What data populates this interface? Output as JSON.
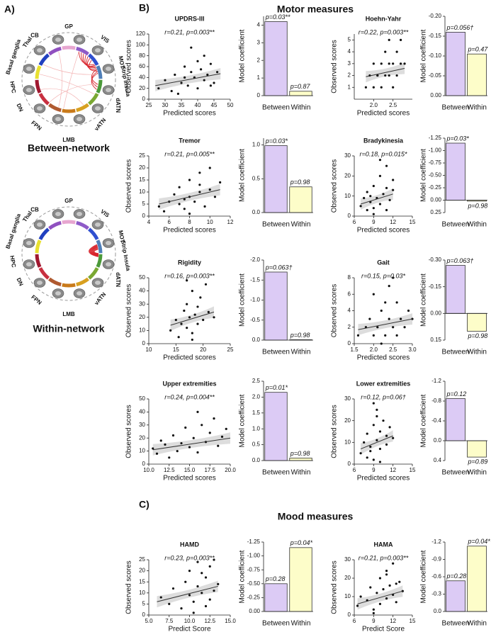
{
  "panel_labels": [
    "A)",
    "B)",
    "C)"
  ],
  "section_titles": [
    "Motor measures",
    "Mood measures"
  ],
  "network_diagrams": [
    {
      "title": "Between-network"
    },
    {
      "title": "Within-network"
    }
  ],
  "network_labels": [
    "CB",
    "GP",
    "VIS",
    "MOT",
    "Strip Insula",
    "dATN",
    "vATN",
    "LMB",
    "FPN",
    "DN",
    "HPC",
    "Basal ganglia",
    "Thal"
  ],
  "chart_data": [
    {
      "type": "scatter",
      "title": "UPDRS-III",
      "annotation": "r=0.21,  p=0.003**",
      "xlabel": "Predicted scores",
      "ylabel": "Observed scores",
      "color": "#111111",
      "xlim": [
        25,
        50
      ],
      "xticks": [
        25,
        30,
        35,
        40,
        45,
        50
      ],
      "ylim": [
        0,
        120
      ],
      "yticks": [
        0,
        20,
        40,
        60,
        80,
        100,
        120
      ],
      "x": [
        28,
        30,
        32,
        33,
        35,
        36,
        37,
        38,
        39,
        40,
        40,
        41,
        42,
        43,
        44,
        45,
        46,
        34,
        38,
        42,
        36,
        44
      ],
      "y": [
        20,
        35,
        15,
        45,
        30,
        60,
        25,
        50,
        40,
        70,
        20,
        55,
        35,
        45,
        65,
        30,
        50,
        10,
        95,
        80,
        40,
        25
      ],
      "fit": {
        "x": [
          27,
          47
        ],
        "y": [
          25,
          47
        ]
      }
    },
    {
      "type": "bar",
      "ylabel": "Model coefficient",
      "categories": [
        "Between",
        "Within"
      ],
      "values": [
        4.2,
        0.25
      ],
      "colors": [
        "#dccbf5",
        "#fdfdc9"
      ],
      "annotations": [
        "p=0.03**",
        "p=0.87"
      ],
      "ylim": [
        0,
        4.5
      ],
      "yticks": [
        0,
        1,
        2,
        3,
        4
      ]
    },
    {
      "type": "scatter",
      "title": "Hoehn-Yahr",
      "annotation": "r=0.22,  p=0.003**",
      "xlabel": "Predicted scores",
      "ylabel": "Observed scores",
      "color": "#111111",
      "xlim": [
        1.5,
        3.0
      ],
      "xticks": [
        {
          "value": 2,
          "label": "2.0"
        },
        2.5
      ],
      "ylim": [
        0,
        5.5
      ],
      "yticks": [
        1,
        2,
        3,
        4,
        5
      ],
      "x": [
        1.8,
        1.9,
        2.0,
        2.0,
        2.1,
        2.2,
        2.2,
        2.3,
        2.3,
        2.4,
        2.4,
        2.5,
        2.5,
        2.6,
        2.6,
        2.7,
        2.7,
        2.8,
        2.1,
        2.4
      ],
      "y": [
        1,
        2,
        1,
        3,
        2,
        1,
        3,
        2,
        4,
        2,
        3,
        1,
        3,
        2,
        4,
        3,
        5,
        3,
        2,
        5
      ],
      "fit": {
        "x": [
          1.8,
          2.8
        ],
        "y": [
          1.9,
          2.6
        ]
      }
    },
    {
      "type": "bar",
      "ylabel": "Model coefficient",
      "categories": [
        "Between",
        "Within"
      ],
      "values": [
        -0.16,
        -0.105
      ],
      "colors": [
        "#dccbf5",
        "#fdfdc9"
      ],
      "annotations": [
        "p=0.056†",
        "p=0.47"
      ],
      "ylim": [
        0,
        -0.2
      ],
      "yticks": [
        {
          "value": -0.2,
          "label": "-0.20"
        },
        -0.15,
        {
          "value": -0.1,
          "label": "-0.10"
        },
        -0.05,
        {
          "value": 0,
          "label": "0.00"
        }
      ]
    },
    {
      "type": "scatter",
      "title": "Tremor",
      "annotation": "r=0.21,  p=0.005**",
      "xlabel": "Predicted scores",
      "ylabel": "Observed scores",
      "color": "#111111",
      "xlim": [
        4,
        12
      ],
      "xticks": [
        4,
        6,
        8,
        10,
        12
      ],
      "ylim": [
        0,
        25
      ],
      "yticks": [
        0,
        5,
        10,
        15,
        20,
        25
      ],
      "x": [
        5,
        5.5,
        6,
        6.5,
        7,
        7,
        7.5,
        8,
        8,
        8.5,
        9,
        9,
        9.5,
        10,
        10,
        10.5,
        11,
        8,
        9,
        7.5
      ],
      "y": [
        4,
        2,
        6,
        9,
        5,
        12,
        3,
        8,
        15,
        6,
        10,
        18,
        4,
        11,
        20,
        8,
        14,
        1,
        13,
        7
      ],
      "fit": {
        "x": [
          5,
          11
        ],
        "y": [
          5,
          11
        ]
      }
    },
    {
      "type": "bar",
      "ylabel": "Model coefficient",
      "categories": [
        "Between",
        "Within"
      ],
      "values": [
        0.99,
        0.38
      ],
      "colors": [
        "#dccbf5",
        "#fdfdc9"
      ],
      "annotations": [
        "p=0.03*",
        "p=0.98"
      ],
      "ylim": [
        0,
        1.1
      ],
      "yticks": [
        {
          "value": 0,
          "label": "0.0"
        },
        0.5,
        {
          "value": 1,
          "label": "1.0"
        }
      ]
    },
    {
      "type": "scatter",
      "title": "Bradykinesia",
      "annotation": "r=0.18,  p=0.015*",
      "xlabel": "Predicted scores",
      "ylabel": "Observed scores",
      "color": "#111111",
      "xlim": [
        6,
        15
      ],
      "xticks": [
        6,
        9,
        12,
        15
      ],
      "ylim": [
        0,
        30
      ],
      "yticks": [
        0,
        10,
        20,
        30
      ],
      "x": [
        7,
        7.5,
        8,
        8,
        8.5,
        9,
        9,
        9.5,
        10,
        10,
        10.5,
        11,
        11,
        11.5,
        12,
        12,
        9,
        10,
        8.5,
        11
      ],
      "y": [
        5,
        9,
        3,
        12,
        7,
        15,
        4,
        9,
        20,
        6,
        11,
        14,
        25,
        8,
        13,
        18,
        1,
        28,
        10,
        3
      ],
      "fit": {
        "x": [
          7,
          12
        ],
        "y": [
          6,
          11
        ]
      }
    },
    {
      "type": "bar",
      "ylabel": "Model coefficient",
      "categories": [
        "Between",
        "Within"
      ],
      "values": [
        -1.15,
        0.02
      ],
      "colors": [
        "#dccbf5",
        "#fdfdc9"
      ],
      "annotations": [
        "p=0.03*",
        "p=0.98"
      ],
      "ylim": [
        0.25,
        -1.25
      ],
      "yticks": [
        -1.25,
        {
          "value": -1,
          "label": "-1.00"
        },
        -0.75,
        {
          "value": -0.5,
          "label": "-0.50"
        },
        -0.25,
        {
          "value": 0,
          "label": "0.00"
        },
        0.25
      ]
    },
    {
      "type": "scatter",
      "title": "Rigidity",
      "annotation": "r=0.16,  p=0.003**",
      "xlabel": "Predicted scores",
      "ylabel": "Observed scores",
      "color": "#111111",
      "xlim": [
        10,
        25
      ],
      "xticks": [
        10,
        15,
        20,
        25
      ],
      "ylim": [
        0,
        50
      ],
      "yticks": [
        0,
        10,
        20,
        30,
        40,
        50
      ],
      "x": [
        14,
        15,
        15.5,
        16,
        16.5,
        17,
        17,
        17.5,
        18,
        18,
        18.5,
        19,
        19,
        19.5,
        20,
        20.5,
        21,
        22,
        18,
        17
      ],
      "y": [
        10,
        18,
        5,
        15,
        25,
        12,
        30,
        20,
        8,
        40,
        22,
        15,
        28,
        35,
        18,
        45,
        24,
        20,
        3,
        48
      ],
      "fit": {
        "x": [
          14,
          22
        ],
        "y": [
          14,
          24
        ]
      }
    },
    {
      "type": "bar",
      "ylabel": "Model coefficient",
      "categories": [
        "Between",
        "Within"
      ],
      "values": [
        -1.7,
        -0.01
      ],
      "colors": [
        "#dccbf5",
        "#fdfdc9"
      ],
      "annotations": [
        "p=0.063†",
        "p=0.98"
      ],
      "ylim": [
        0,
        -2
      ],
      "yticks": [
        {
          "value": -2,
          "label": "-2.0"
        },
        -1.5,
        {
          "value": -1,
          "label": "-1.0"
        },
        -0.5,
        {
          "value": 0,
          "label": "0.0"
        }
      ]
    },
    {
      "type": "scatter",
      "title": "Gait",
      "annotation": "r=0.15,  p=0.03*",
      "xlabel": "Predicted scores",
      "ylabel": "Observed scores",
      "color": "#111111",
      "xlim": [
        1.5,
        3.0
      ],
      "xticks": [
        1.5,
        {
          "value": 2,
          "label": "2.0"
        },
        2.5,
        {
          "value": 3,
          "label": "3.0"
        }
      ],
      "ylim": [
        0,
        8
      ],
      "yticks": [
        0,
        2,
        4,
        6,
        8
      ],
      "x": [
        1.6,
        1.8,
        1.9,
        2.0,
        2.1,
        2.2,
        2.3,
        2.4,
        2.5,
        2.6,
        2.7,
        2.8,
        2.9,
        3.0,
        2.0,
        2.2,
        2.4,
        2.6,
        2.3,
        2.5
      ],
      "y": [
        1,
        2,
        3,
        1,
        2,
        4,
        1,
        3,
        2,
        5,
        3,
        2,
        4,
        3,
        6,
        0,
        7,
        1,
        5,
        8
      ],
      "fit": {
        "x": [
          1.6,
          3.0
        ],
        "y": [
          1.7,
          3.0
        ]
      }
    },
    {
      "type": "bar",
      "ylabel": "Model coefficient",
      "categories": [
        "Between",
        "Within"
      ],
      "values": [
        -0.27,
        0.1
      ],
      "colors": [
        "#dccbf5",
        "#fdfdc9"
      ],
      "annotations": [
        "p=0.063†",
        "p=0.98"
      ],
      "ylim": [
        0.15,
        -0.3
      ],
      "yticks": [
        {
          "value": -0.3,
          "label": "-0.30"
        },
        -0.15,
        {
          "value": 0,
          "label": "0.00"
        },
        0.15
      ]
    },
    {
      "type": "scatter",
      "title": "Upper extremities",
      "annotation": "r=0.24,  p=0.004**",
      "xlabel": "Predicted scores",
      "ylabel": "Observed scores",
      "color": "#111111",
      "xlim": [
        10,
        20
      ],
      "xticks": [
        {
          "value": 10,
          "label": "10.0"
        },
        12.5,
        {
          "value": 15,
          "label": "15.0"
        },
        17.5,
        {
          "value": 20,
          "label": "20.0"
        }
      ],
      "ylim": [
        0,
        50
      ],
      "yticks": [
        0,
        10,
        20,
        30,
        40,
        50
      ],
      "x": [
        10.5,
        11,
        11.5,
        12,
        12.5,
        13,
        13.5,
        14,
        14.5,
        15,
        15.5,
        16,
        16.5,
        17,
        17.5,
        18,
        18.5,
        19,
        19.5,
        16
      ],
      "y": [
        12,
        8,
        18,
        15,
        5,
        22,
        10,
        16,
        28,
        13,
        20,
        9,
        30,
        17,
        24,
        35,
        14,
        21,
        27,
        40
      ],
      "fit": {
        "x": [
          10.5,
          20
        ],
        "y": [
          11,
          20
        ]
      }
    },
    {
      "type": "bar",
      "ylabel": "Model coefficient",
      "categories": [
        "Between",
        "Within"
      ],
      "values": [
        2.15,
        0.08
      ],
      "colors": [
        "#dccbf5",
        "#fdfdc9"
      ],
      "annotations": [
        "p=0.01*",
        "p=0.98"
      ],
      "ylim": [
        0,
        2.5
      ],
      "yticks": [
        {
          "value": 0,
          "label": "0.0"
        },
        0.5,
        {
          "value": 1,
          "label": "1.0"
        },
        1.5,
        {
          "value": 2,
          "label": "2.0"
        },
        2.5
      ]
    },
    {
      "type": "scatter",
      "title": "Lower extremities",
      "annotation": "r=0.12,  p=0.06†",
      "xlabel": "Predicted scores",
      "ylabel": "Observed scores",
      "color": "#111111",
      "xlim": [
        6,
        15
      ],
      "xticks": [
        6,
        9,
        12,
        15
      ],
      "ylim": [
        0,
        30
      ],
      "yticks": [
        0,
        10,
        20,
        30
      ],
      "x": [
        7,
        7.5,
        8,
        8,
        8.5,
        9,
        9,
        9.5,
        9.5,
        10,
        10,
        10.5,
        11,
        11,
        11.5,
        12,
        9,
        10,
        8.5,
        9.5
      ],
      "y": [
        5,
        10,
        3,
        14,
        8,
        18,
        2,
        11,
        25,
        7,
        15,
        20,
        9,
        13,
        17,
        12,
        28,
        1,
        6,
        22
      ],
      "fit": {
        "x": [
          7,
          12
        ],
        "y": [
          7,
          13
        ]
      }
    },
    {
      "type": "bar",
      "ylabel": "Model coefficient",
      "categories": [
        "Between",
        "Within"
      ],
      "values": [
        -0.85,
        0.33
      ],
      "colors": [
        "#dccbf5",
        "#fdfdc9"
      ],
      "annotations": [
        "p=0.12",
        "p=0.89"
      ],
      "ylim": [
        0.4,
        -1.2
      ],
      "yticks": [
        -1.2,
        -0.8,
        -0.4,
        {
          "value": 0,
          "label": "0.0"
        },
        0.4
      ]
    },
    {
      "type": "scatter",
      "title": "HAMD",
      "annotation": "r=0.23,  p=0.003**",
      "xlabel": "Predict Score",
      "ylabel": "Observed scores",
      "color": "#111111",
      "xlim": [
        5,
        15
      ],
      "xticks": [
        {
          "value": 5,
          "label": "5.0"
        },
        7.5,
        {
          "value": 10,
          "label": "10.0"
        },
        12.5,
        {
          "value": 15,
          "label": "15.0"
        }
      ],
      "ylim": [
        0,
        25
      ],
      "yticks": [
        0,
        5,
        10,
        15,
        20,
        25
      ],
      "x": [
        6.5,
        7.5,
        8,
        9,
        9.5,
        10,
        10,
        10.5,
        11,
        11,
        11.5,
        12,
        12,
        12.5,
        13,
        13,
        13.5,
        10.5,
        11.5,
        12.5
      ],
      "y": [
        8,
        5,
        12,
        3,
        15,
        9,
        20,
        6,
        13,
        24,
        10,
        17,
        4,
        22,
        11,
        25,
        14,
        1,
        19,
        7
      ],
      "fit": {
        "x": [
          6,
          13.5
        ],
        "y": [
          6,
          13
        ]
      }
    },
    {
      "type": "bar",
      "ylabel": "Model coefficient",
      "categories": [
        "Between",
        "Within"
      ],
      "values": [
        -0.5,
        -1.15
      ],
      "colors": [
        "#dccbf5",
        "#fdfdc9"
      ],
      "annotations": [
        "p=0.28",
        "p=0.04*"
      ],
      "ylim": [
        0,
        -1.25
      ],
      "yticks": [
        -1.25,
        {
          "value": -1,
          "label": "-1.00"
        },
        -0.75,
        {
          "value": -0.5,
          "label": "-0.50"
        },
        -0.25,
        {
          "value": 0,
          "label": "0.00"
        }
      ]
    },
    {
      "type": "scatter",
      "title": "HAMA",
      "annotation": "r=0.21,  p=0.003**",
      "xlabel": "Predict Score",
      "ylabel": "Observed scores",
      "color": "#111111",
      "xlim": [
        6,
        15
      ],
      "xticks": [
        6,
        9,
        12,
        15
      ],
      "ylim": [
        0,
        30
      ],
      "yticks": [
        0,
        10,
        20,
        30
      ],
      "x": [
        6.5,
        7,
        8,
        8.5,
        9,
        9.5,
        10,
        10,
        10.5,
        11,
        11,
        11.5,
        12,
        12,
        12.5,
        13,
        13.5,
        9,
        11,
        12.5
      ],
      "y": [
        5,
        10,
        8,
        15,
        3,
        12,
        20,
        6,
        14,
        9,
        24,
        16,
        11,
        28,
        7,
        18,
        13,
        1,
        22,
        17
      ],
      "fit": {
        "x": [
          6.5,
          13.5
        ],
        "y": [
          6,
          13
        ]
      }
    },
    {
      "type": "bar",
      "ylabel": "Model coefficient",
      "categories": [
        "Between",
        "Within"
      ],
      "values": [
        -0.53,
        -1.13
      ],
      "colors": [
        "#dccbf5",
        "#fdfdc9"
      ],
      "annotations": [
        "p=0.28",
        "p=0.04*"
      ],
      "ylim": [
        0,
        -1.2
      ],
      "yticks": [
        -1.2,
        -0.9,
        -0.6,
        -0.3,
        {
          "value": 0,
          "label": "0.0"
        }
      ]
    }
  ]
}
